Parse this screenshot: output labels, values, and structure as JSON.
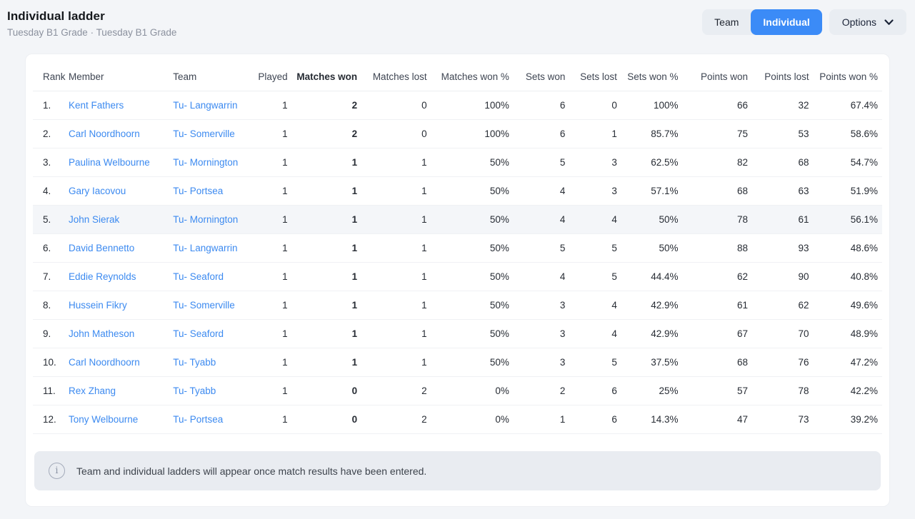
{
  "page": {
    "title": "Individual ladder",
    "subtitle": "Tuesday B1 Grade · Tuesday B1 Grade"
  },
  "controls": {
    "team_label": "Team",
    "individual_label": "Individual",
    "options_label": "Options"
  },
  "colors": {
    "accent_blue": "#3b8bf7",
    "link_blue": "#3c8af0",
    "page_background": "#f3f5f8",
    "button_gray": "#e9edf2",
    "banner_gray": "#e9ecf1",
    "highlight_row": "#f4f6f9"
  },
  "table": {
    "columns": [
      {
        "key": "rank",
        "label": "Rank",
        "align": "left",
        "link": false,
        "bold_cells": false,
        "bold_header": false
      },
      {
        "key": "member",
        "label": "Member",
        "align": "left",
        "link": true,
        "bold_cells": false,
        "bold_header": false
      },
      {
        "key": "team",
        "label": "Team",
        "align": "left",
        "link": true,
        "bold_cells": false,
        "bold_header": false
      },
      {
        "key": "played",
        "label": "Played",
        "align": "right",
        "link": false,
        "bold_cells": false,
        "bold_header": false
      },
      {
        "key": "matches_won",
        "label": "Matches won",
        "align": "right",
        "link": false,
        "bold_cells": true,
        "bold_header": true
      },
      {
        "key": "matches_lost",
        "label": "Matches lost",
        "align": "right",
        "link": false,
        "bold_cells": false,
        "bold_header": false
      },
      {
        "key": "matches_won_pct",
        "label": "Matches won %",
        "align": "right",
        "link": false,
        "bold_cells": false,
        "bold_header": false
      },
      {
        "key": "sets_won",
        "label": "Sets won",
        "align": "right",
        "link": false,
        "bold_cells": false,
        "bold_header": false
      },
      {
        "key": "sets_lost",
        "label": "Sets lost",
        "align": "right",
        "link": false,
        "bold_cells": false,
        "bold_header": false
      },
      {
        "key": "sets_won_pct",
        "label": "Sets won %",
        "align": "right",
        "link": false,
        "bold_cells": false,
        "bold_header": false
      },
      {
        "key": "points_won",
        "label": "Points won",
        "align": "right",
        "link": false,
        "bold_cells": false,
        "bold_header": false
      },
      {
        "key": "points_lost",
        "label": "Points lost",
        "align": "right",
        "link": false,
        "bold_cells": false,
        "bold_header": false
      },
      {
        "key": "points_won_pct",
        "label": "Points won %",
        "align": "right",
        "link": false,
        "bold_cells": false,
        "bold_header": false
      }
    ],
    "rows": [
      {
        "rank": "1.",
        "member": "Kent Fathers",
        "team": "Tu- Langwarrin",
        "played": "1",
        "matches_won": "2",
        "matches_lost": "0",
        "matches_won_pct": "100%",
        "sets_won": "6",
        "sets_lost": "0",
        "sets_won_pct": "100%",
        "points_won": "66",
        "points_lost": "32",
        "points_won_pct": "67.4%",
        "highlighted": false
      },
      {
        "rank": "2.",
        "member": "Carl Noordhoorn",
        "team": "Tu- Somerville",
        "played": "1",
        "matches_won": "2",
        "matches_lost": "0",
        "matches_won_pct": "100%",
        "sets_won": "6",
        "sets_lost": "1",
        "sets_won_pct": "85.7%",
        "points_won": "75",
        "points_lost": "53",
        "points_won_pct": "58.6%",
        "highlighted": false
      },
      {
        "rank": "3.",
        "member": "Paulina Welbourne",
        "team": "Tu- Mornington",
        "played": "1",
        "matches_won": "1",
        "matches_lost": "1",
        "matches_won_pct": "50%",
        "sets_won": "5",
        "sets_lost": "3",
        "sets_won_pct": "62.5%",
        "points_won": "82",
        "points_lost": "68",
        "points_won_pct": "54.7%",
        "highlighted": false
      },
      {
        "rank": "4.",
        "member": "Gary Iacovou",
        "team": "Tu- Portsea",
        "played": "1",
        "matches_won": "1",
        "matches_lost": "1",
        "matches_won_pct": "50%",
        "sets_won": "4",
        "sets_lost": "3",
        "sets_won_pct": "57.1%",
        "points_won": "68",
        "points_lost": "63",
        "points_won_pct": "51.9%",
        "highlighted": false
      },
      {
        "rank": "5.",
        "member": "John Sierak",
        "team": "Tu- Mornington",
        "played": "1",
        "matches_won": "1",
        "matches_lost": "1",
        "matches_won_pct": "50%",
        "sets_won": "4",
        "sets_lost": "4",
        "sets_won_pct": "50%",
        "points_won": "78",
        "points_lost": "61",
        "points_won_pct": "56.1%",
        "highlighted": true
      },
      {
        "rank": "6.",
        "member": "David Bennetto",
        "team": "Tu- Langwarrin",
        "played": "1",
        "matches_won": "1",
        "matches_lost": "1",
        "matches_won_pct": "50%",
        "sets_won": "5",
        "sets_lost": "5",
        "sets_won_pct": "50%",
        "points_won": "88",
        "points_lost": "93",
        "points_won_pct": "48.6%",
        "highlighted": false
      },
      {
        "rank": "7.",
        "member": "Eddie Reynolds",
        "team": "Tu- Seaford",
        "played": "1",
        "matches_won": "1",
        "matches_lost": "1",
        "matches_won_pct": "50%",
        "sets_won": "4",
        "sets_lost": "5",
        "sets_won_pct": "44.4%",
        "points_won": "62",
        "points_lost": "90",
        "points_won_pct": "40.8%",
        "highlighted": false
      },
      {
        "rank": "8.",
        "member": "Hussein Fikry",
        "team": "Tu- Somerville",
        "played": "1",
        "matches_won": "1",
        "matches_lost": "1",
        "matches_won_pct": "50%",
        "sets_won": "3",
        "sets_lost": "4",
        "sets_won_pct": "42.9%",
        "points_won": "61",
        "points_lost": "62",
        "points_won_pct": "49.6%",
        "highlighted": false
      },
      {
        "rank": "9.",
        "member": "John Matheson",
        "team": "Tu- Seaford",
        "played": "1",
        "matches_won": "1",
        "matches_lost": "1",
        "matches_won_pct": "50%",
        "sets_won": "3",
        "sets_lost": "4",
        "sets_won_pct": "42.9%",
        "points_won": "67",
        "points_lost": "70",
        "points_won_pct": "48.9%",
        "highlighted": false
      },
      {
        "rank": "10.",
        "member": "Carl Noordhoorn",
        "team": "Tu- Tyabb",
        "played": "1",
        "matches_won": "1",
        "matches_lost": "1",
        "matches_won_pct": "50%",
        "sets_won": "3",
        "sets_lost": "5",
        "sets_won_pct": "37.5%",
        "points_won": "68",
        "points_lost": "76",
        "points_won_pct": "47.2%",
        "highlighted": false
      },
      {
        "rank": "11.",
        "member": "Rex Zhang",
        "team": "Tu- Tyabb",
        "played": "1",
        "matches_won": "0",
        "matches_lost": "2",
        "matches_won_pct": "0%",
        "sets_won": "2",
        "sets_lost": "6",
        "sets_won_pct": "25%",
        "points_won": "57",
        "points_lost": "78",
        "points_won_pct": "42.2%",
        "highlighted": false
      },
      {
        "rank": "12.",
        "member": "Tony Welbourne",
        "team": "Tu- Portsea",
        "played": "1",
        "matches_won": "0",
        "matches_lost": "2",
        "matches_won_pct": "0%",
        "sets_won": "1",
        "sets_lost": "6",
        "sets_won_pct": "14.3%",
        "points_won": "47",
        "points_lost": "73",
        "points_won_pct": "39.2%",
        "highlighted": false
      }
    ]
  },
  "banner": {
    "text": "Team and individual ladders will appear once match results have been entered."
  }
}
